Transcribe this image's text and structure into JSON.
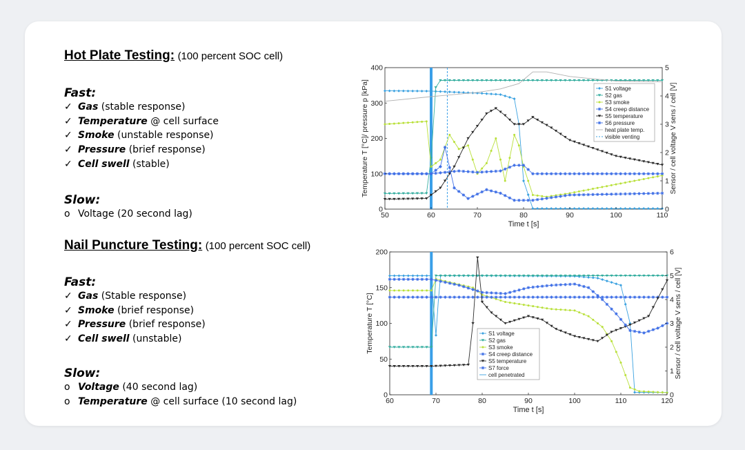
{
  "sections": [
    {
      "heading": "Hot Plate Testing:",
      "subheading": "(100 percent SOC cell)",
      "fast_label": "Fast:",
      "fast_items": [
        {
          "key": "Gas",
          "rest": " (stable response)"
        },
        {
          "key": "Temperature",
          "rest": " @ cell surface"
        },
        {
          "key": "Smoke",
          "rest": " (unstable response)"
        },
        {
          "key": "Pressure",
          "rest": " (brief response)"
        },
        {
          "key": "Cell swell",
          "rest": " (stable)"
        }
      ],
      "slow_label": "Slow:",
      "slow_items": [
        {
          "key": "",
          "rest": "Voltage (20 second lag)"
        }
      ]
    },
    {
      "heading": "Nail Puncture Testing:",
      "subheading": "(100 percent SOC cell)",
      "fast_label": "Fast:",
      "fast_items": [
        {
          "key": "Gas",
          "rest": " (Stable response)"
        },
        {
          "key": "Smoke",
          "rest": " (brief response)"
        },
        {
          "key": "Pressure",
          "rest": " (brief response)"
        },
        {
          "key": "Cell swell",
          "rest": " (unstable)"
        }
      ],
      "slow_label": "Slow:",
      "slow_items": [
        {
          "key": "Voltage",
          "rest": " (40 second lag)"
        },
        {
          "key": "Temperature",
          "rest": " @ cell surface (10 second lag)"
        }
      ]
    }
  ],
  "markers": {
    "check": "✓",
    "bullet": "o"
  },
  "chart_data": [
    {
      "type": "line",
      "xlabel": "Time t [s]",
      "ylabel_left": "Temperature T [°C]/ pressure p [kPa]",
      "ylabel_right": "Sensor / cell voltage V sens / cell [V]",
      "xlim": [
        50,
        110
      ],
      "ylim_left": [
        0,
        400
      ],
      "ylim_right": [
        0,
        5
      ],
      "x_ticks": [
        50,
        60,
        70,
        80,
        90,
        100,
        110
      ],
      "y_ticks_left": [
        0,
        100,
        200,
        300,
        400
      ],
      "y_ticks_right": [
        0,
        1,
        2,
        3,
        4,
        5
      ],
      "vlines": [
        {
          "x": 60,
          "style": "solid"
        },
        {
          "x": 63.5,
          "style": "dashed"
        }
      ],
      "legend_position": "top-right",
      "series": [
        {
          "name": "S1 voltage",
          "color": "#3aa1e0",
          "axis": "right",
          "x": [
            50,
            60,
            70,
            75,
            78,
            79,
            80,
            82,
            90,
            110
          ],
          "y": [
            4.18,
            4.17,
            4.1,
            4.05,
            3.9,
            3.0,
            1.0,
            0.02,
            0.02,
            0.02
          ]
        },
        {
          "name": "S2 gas",
          "color": "#36aea0",
          "axis": "right",
          "x": [
            50,
            59,
            60,
            61,
            62,
            70,
            90,
            110
          ],
          "y": [
            0.55,
            0.56,
            1.8,
            4.3,
            4.55,
            4.55,
            4.55,
            4.55
          ]
        },
        {
          "name": "S3 smoke",
          "color": "#b9e03a",
          "axis": "left",
          "x": [
            50,
            59,
            60,
            62,
            64,
            66,
            68,
            70,
            72,
            74,
            76,
            78,
            79,
            80,
            82,
            85,
            90,
            100,
            110
          ],
          "y": [
            240,
            248,
            120,
            140,
            210,
            170,
            180,
            100,
            130,
            200,
            80,
            210,
            180,
            120,
            40,
            35,
            45,
            70,
            95
          ]
        },
        {
          "name": "S4 creep distance",
          "color": "#3f6fe6",
          "axis": "right",
          "x": [
            50,
            60,
            63,
            66,
            70,
            75,
            78,
            80,
            82,
            90,
            110
          ],
          "y": [
            1.25,
            1.25,
            1.3,
            1.35,
            1.3,
            1.35,
            1.55,
            1.55,
            1.25,
            1.25,
            1.25
          ]
        },
        {
          "name": "S5 temperature",
          "color": "#2a2a2a",
          "axis": "left",
          "x": [
            50,
            59,
            62,
            65,
            68,
            72,
            74,
            76,
            78,
            80,
            82,
            86,
            90,
            100,
            110
          ],
          "y": [
            28,
            30,
            60,
            120,
            200,
            270,
            285,
            265,
            240,
            240,
            260,
            230,
            195,
            150,
            125
          ]
        },
        {
          "name": "S6 pressure",
          "color": "#3f6fe6",
          "axis": "left",
          "x": [
            50,
            60,
            62,
            63,
            65,
            68,
            72,
            75,
            78,
            82,
            90,
            110
          ],
          "y": [
            100,
            100,
            120,
            175,
            60,
            30,
            55,
            45,
            25,
            25,
            40,
            45
          ]
        },
        {
          "name": "heat plate temp.",
          "color": "#b0b0b0",
          "axis": "left",
          "x": [
            50,
            60,
            70,
            75,
            79,
            82,
            85,
            90,
            100,
            110
          ],
          "y": [
            305,
            318,
            330,
            340,
            355,
            388,
            388,
            375,
            362,
            360
          ]
        },
        {
          "name": "visible venting",
          "color": "#3aa1e0",
          "axis": "left",
          "dashed": true
        }
      ]
    },
    {
      "type": "line",
      "xlabel": "Time t [s]",
      "ylabel_left": "Temperature T [°C]",
      "ylabel_right": "Sensor / cell voltage V sens / cell [V]",
      "xlim": [
        60,
        120
      ],
      "ylim_left": [
        0,
        200
      ],
      "ylim_right": [
        0,
        6
      ],
      "x_ticks": [
        60,
        70,
        80,
        90,
        100,
        110,
        120
      ],
      "y_ticks_left": [
        0,
        50,
        100,
        150,
        200
      ],
      "y_ticks_right": [
        0,
        1,
        2,
        3,
        4,
        5,
        6
      ],
      "vlines": [
        {
          "x": 69,
          "style": "solid"
        }
      ],
      "legend_position": "bottom-left",
      "series": [
        {
          "name": "S1 voltage",
          "color": "#3aa1e0",
          "axis": "right",
          "x": [
            60,
            69,
            69.5,
            70,
            70.5,
            71,
            80,
            100,
            105,
            110,
            112,
            113,
            120
          ],
          "y": [
            5.0,
            5.0,
            3.6,
            2.5,
            3.9,
            5.0,
            5.0,
            4.98,
            4.9,
            4.6,
            3.0,
            0.1,
            0.1
          ]
        },
        {
          "name": "S2 gas",
          "color": "#36aea0",
          "axis": "right",
          "x": [
            60,
            69,
            70,
            80,
            100,
            110,
            120
          ],
          "y": [
            2.0,
            2.0,
            5.0,
            5.0,
            5.0,
            5.0,
            5.0
          ]
        },
        {
          "name": "S3 smoke",
          "color": "#b9e03a",
          "axis": "left",
          "x": [
            60,
            69,
            70,
            78,
            80,
            85,
            90,
            95,
            100,
            103,
            106,
            108,
            110,
            112,
            114,
            120
          ],
          "y": [
            146,
            146,
            162,
            150,
            140,
            130,
            125,
            120,
            118,
            110,
            95,
            75,
            45,
            10,
            5,
            3
          ]
        },
        {
          "name": "S4 creep distance",
          "color": "#3f6fe6",
          "axis": "right",
          "x": [
            60,
            69,
            70,
            80,
            90,
            100,
            110,
            120
          ],
          "y": [
            4.1,
            4.1,
            4.1,
            4.1,
            4.1,
            4.1,
            4.1,
            4.1
          ]
        },
        {
          "name": "S5 temperature",
          "color": "#2a2a2a",
          "axis": "left",
          "x": [
            60,
            69,
            73,
            77,
            78,
            79,
            80,
            82,
            85,
            90,
            93,
            96,
            100,
            105,
            108,
            112,
            116,
            120
          ],
          "y": [
            40,
            40,
            41,
            42,
            100,
            192,
            130,
            115,
            100,
            110,
            105,
            92,
            82,
            75,
            88,
            98,
            110,
            160
          ]
        },
        {
          "name": "S7 force",
          "color": "#3f6fe6",
          "axis": "right",
          "x": [
            60,
            69,
            75,
            80,
            85,
            90,
            95,
            100,
            103,
            106,
            109,
            112,
            115,
            118,
            120
          ],
          "y": [
            4.85,
            4.85,
            4.6,
            4.3,
            4.25,
            4.5,
            4.6,
            4.65,
            4.5,
            4.0,
            3.4,
            2.7,
            2.6,
            2.8,
            3.0
          ]
        },
        {
          "name": "cell penetrated",
          "color": "#3aa1e0",
          "axis": "left",
          "solid": true
        }
      ]
    }
  ]
}
